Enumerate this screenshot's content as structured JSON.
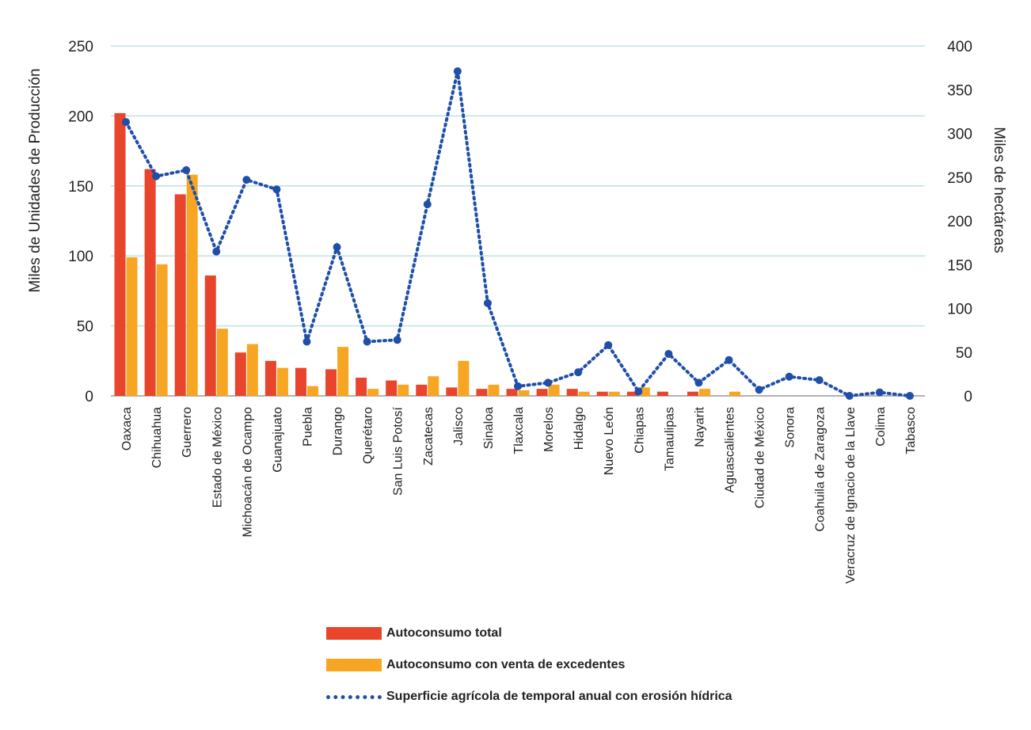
{
  "chart_data": {
    "type": "bar",
    "categories": [
      "Oaxaca",
      "Chihuahua",
      "Guerrero",
      "Estado de México",
      "Michoacán de Ocampo",
      "Guanajuato",
      "Puebla",
      "Durango",
      "Querétaro",
      "San Luis Potosí",
      "Zacatecas",
      "Jalisco",
      "Sinaloa",
      "Tlaxcala",
      "Morelos",
      "Hidalgo",
      "Nuevo León",
      "Chiapas",
      "Tamaulipas",
      "Nayarit",
      "Aguascalientes",
      "Ciudad de México",
      "Sonora",
      "Coahuila de Zaragoza",
      "Veracruz de Ignacio de la Llave",
      "Colima",
      "Tabasco"
    ],
    "series": [
      {
        "name": "Autoconsumo total",
        "axis": "left",
        "kind": "bar",
        "color": "#e8452c",
        "values": [
          202,
          162,
          144,
          86,
          31,
          25,
          20,
          19,
          13,
          11,
          8,
          6,
          5,
          5,
          5,
          5,
          3,
          3,
          3,
          3,
          0,
          0,
          0,
          0,
          0,
          0,
          0
        ]
      },
      {
        "name": "Autoconsumo con venta de excedentes",
        "axis": "left",
        "kind": "bar",
        "color": "#f7a623",
        "values": [
          99,
          94,
          158,
          48,
          37,
          20,
          7,
          35,
          5,
          8,
          14,
          25,
          8,
          4,
          8,
          3,
          3,
          6,
          0,
          5,
          3,
          0,
          0,
          0,
          0,
          0,
          0
        ]
      },
      {
        "name": "Superficie agrícola de temporal anual con erosión hídrica",
        "axis": "right",
        "kind": "line",
        "color": "#1f4fa8",
        "values": [
          313,
          251,
          258,
          165,
          247,
          236,
          62,
          170,
          62,
          64,
          219,
          371,
          106,
          11,
          15,
          27,
          58,
          5,
          48,
          15,
          41,
          7,
          22,
          18,
          0,
          4,
          0
        ]
      }
    ],
    "ylabel": "Miles de Unidades de Producción",
    "y2label": "Miles de hectáreas",
    "ylim": [
      0,
      250
    ],
    "y2lim": [
      0,
      400
    ],
    "yticks": [
      "0",
      "50",
      "100",
      "150",
      "200",
      "250"
    ],
    "y2ticks": [
      "0",
      "50",
      "100",
      "150",
      "200",
      "250",
      "300",
      "350",
      "400"
    ],
    "grid": true,
    "legend_position": "bottom"
  },
  "legend": [
    {
      "label": "Autoconsumo total"
    },
    {
      "label": "Autoconsumo con venta de excedentes"
    },
    {
      "label": "Superficie agrícola de temporal anual con erosión hídrica"
    }
  ]
}
